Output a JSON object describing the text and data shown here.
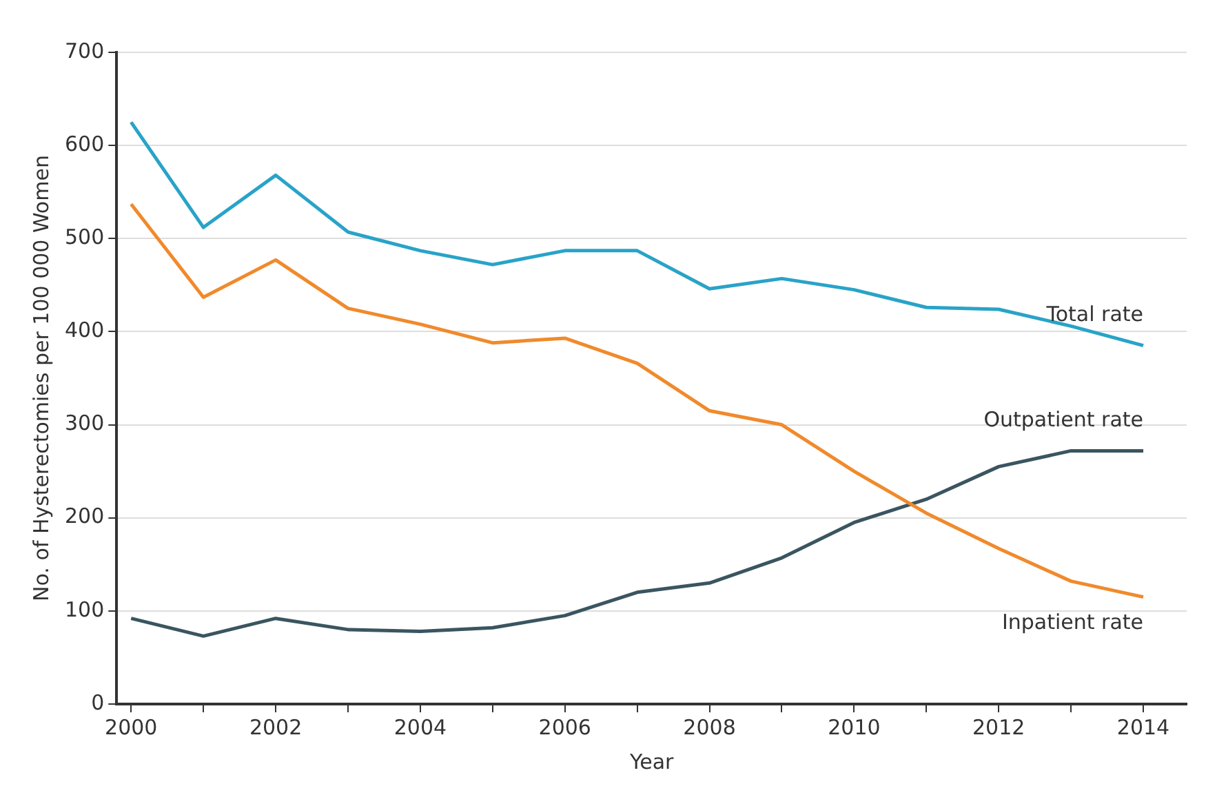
{
  "chart_data": {
    "type": "line",
    "xlabel": "Year",
    "ylabel": "No. of Hysterectomies per 100 000 Women",
    "x": [
      2000,
      2001,
      2002,
      2003,
      2004,
      2005,
      2006,
      2007,
      2008,
      2009,
      2010,
      2011,
      2012,
      2013,
      2014
    ],
    "series": [
      {
        "name": "Total rate",
        "color": "#29a3c8",
        "values": [
          625,
          512,
          568,
          507,
          487,
          472,
          487,
          487,
          446,
          457,
          445,
          426,
          424,
          406,
          385
        ]
      },
      {
        "name": "Inpatient rate",
        "color": "#f08a2c",
        "values": [
          537,
          437,
          477,
          425,
          408,
          388,
          393,
          366,
          315,
          300,
          250,
          205,
          167,
          132,
          115
        ]
      },
      {
        "name": "Outpatient rate",
        "color": "#3a5560",
        "values": [
          92,
          73,
          92,
          80,
          78,
          82,
          95,
          120,
          130,
          157,
          195,
          220,
          255,
          272,
          272
        ]
      }
    ],
    "xlim": [
      1999.8,
      2014.6
    ],
    "xticks": [
      2000,
      {
        "value": 2001,
        "label": null
      },
      2002,
      {
        "value": 2003,
        "label": null
      },
      2004,
      {
        "value": 2005,
        "label": null
      },
      2006,
      {
        "value": 2007,
        "label": null
      },
      2008,
      {
        "value": 2009,
        "label": null
      },
      2010,
      {
        "value": 2011,
        "label": null
      },
      2012,
      {
        "value": 2013,
        "label": null
      },
      2014
    ],
    "ylim": [
      0,
      700
    ],
    "yticks": [
      0,
      100,
      200,
      300,
      400,
      500,
      600,
      700
    ],
    "grid": "y",
    "legend": false,
    "marker": "none",
    "line_style": "solid"
  }
}
